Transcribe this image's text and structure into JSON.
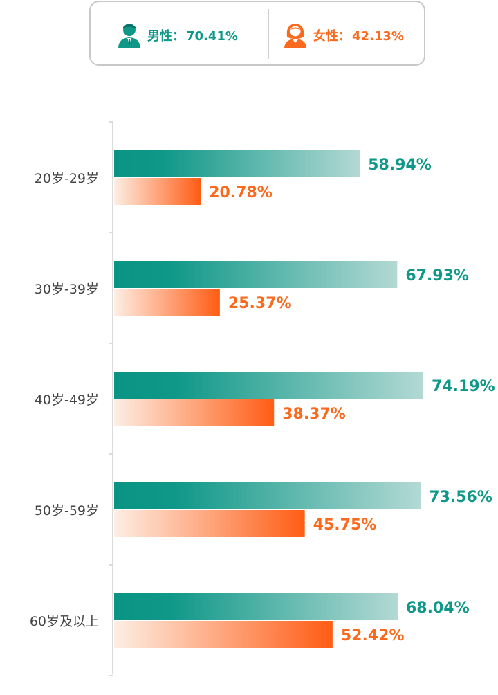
{
  "legend": {
    "male": {
      "label": "男性：",
      "value": "70.41%",
      "color": "#0f9888",
      "icon": "male-person-icon"
    },
    "female": {
      "label": "女性：",
      "value": "42.13%",
      "color": "#fa6a1e",
      "icon": "female-person-icon"
    }
  },
  "chart_data": {
    "type": "bar",
    "orientation": "horizontal",
    "categories": [
      "20岁-29岁",
      "30岁-39岁",
      "40岁-49岁",
      "50岁-59岁",
      "60岁及以上"
    ],
    "series": [
      {
        "name": "男性",
        "values": [
          58.94,
          67.93,
          74.19,
          73.56,
          68.04
        ],
        "labels": [
          "58.94%",
          "67.93%",
          "74.19%",
          "73.56%",
          "68.04%"
        ],
        "color": "#0f9888"
      },
      {
        "name": "女性",
        "values": [
          20.78,
          25.37,
          38.37,
          45.75,
          52.42
        ],
        "labels": [
          "20.78%",
          "25.37%",
          "38.37%",
          "45.75%",
          "52.42%"
        ],
        "color": "#fa6a1e"
      }
    ],
    "xlim": [
      0,
      78
    ],
    "grid": false,
    "legend_position": "top"
  }
}
